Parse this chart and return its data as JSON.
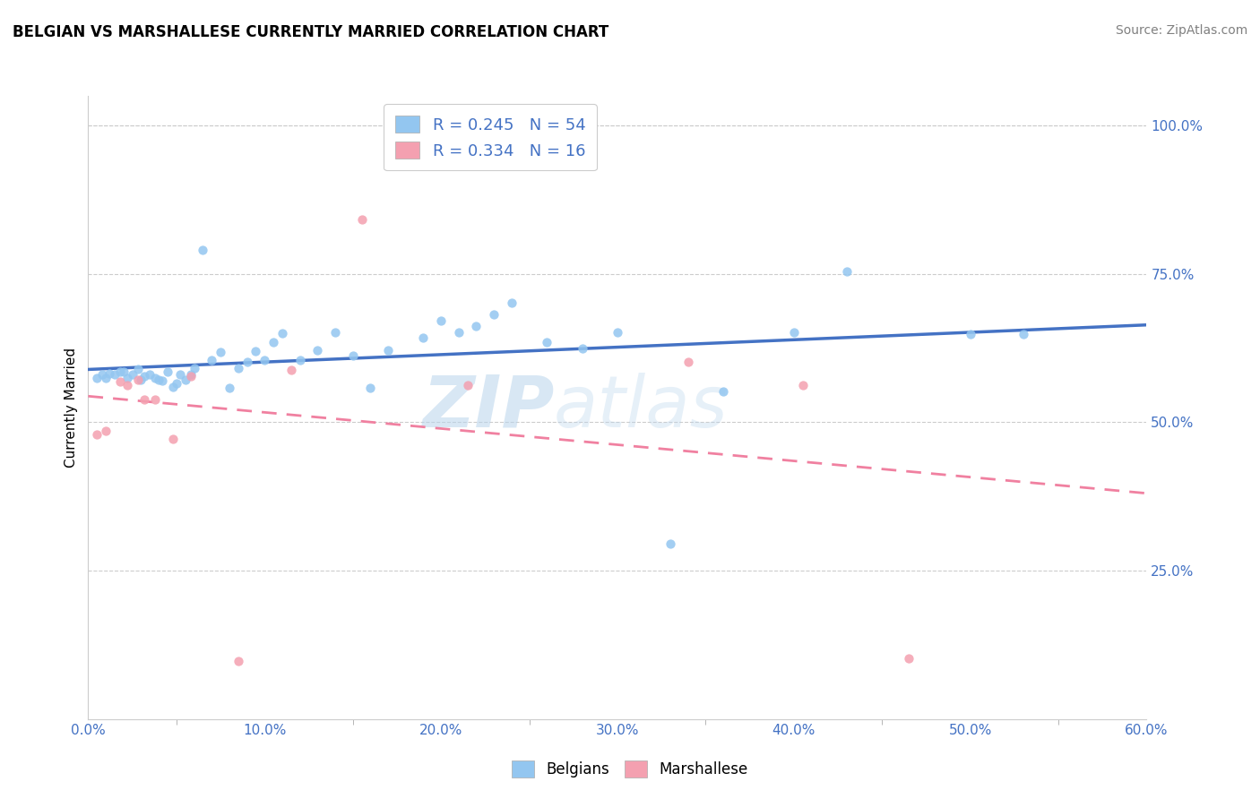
{
  "title": "BELGIAN VS MARSHALLESE CURRENTLY MARRIED CORRELATION CHART",
  "source_text": "Source: ZipAtlas.com",
  "ylabel_text": "Currently Married",
  "xlim": [
    0.0,
    0.6
  ],
  "ylim": [
    0.0,
    1.05
  ],
  "xtick_labels": [
    "0.0%",
    "",
    "10.0%",
    "",
    "20.0%",
    "",
    "30.0%",
    "",
    "40.0%",
    "",
    "50.0%",
    "",
    "60.0%"
  ],
  "xtick_vals": [
    0.0,
    0.05,
    0.1,
    0.15,
    0.2,
    0.25,
    0.3,
    0.35,
    0.4,
    0.45,
    0.5,
    0.55,
    0.6
  ],
  "ytick_labels": [
    "25.0%",
    "50.0%",
    "75.0%",
    "100.0%"
  ],
  "ytick_vals": [
    0.25,
    0.5,
    0.75,
    1.0
  ],
  "belgian_color": "#93c6f0",
  "marshallese_color": "#f4a0b0",
  "belgian_line_color": "#4472c4",
  "marshallese_line_color": "#f080a0",
  "legend_text_color": "#4472c4",
  "watermark_zip": "ZIP",
  "watermark_atlas": "atlas",
  "R_belgian": 0.245,
  "N_belgian": 54,
  "R_marshallese": 0.334,
  "N_marshallese": 16,
  "belgians_scatter_x": [
    0.005,
    0.008,
    0.01,
    0.012,
    0.015,
    0.018,
    0.02,
    0.022,
    0.025,
    0.028,
    0.03,
    0.032,
    0.035,
    0.038,
    0.04,
    0.042,
    0.045,
    0.048,
    0.05,
    0.052,
    0.055,
    0.058,
    0.06,
    0.065,
    0.07,
    0.075,
    0.08,
    0.085,
    0.09,
    0.095,
    0.1,
    0.105,
    0.11,
    0.12,
    0.13,
    0.14,
    0.15,
    0.16,
    0.17,
    0.19,
    0.2,
    0.21,
    0.22,
    0.23,
    0.24,
    0.26,
    0.28,
    0.3,
    0.33,
    0.36,
    0.4,
    0.43,
    0.5,
    0.53
  ],
  "belgians_scatter_y": [
    0.575,
    0.58,
    0.575,
    0.582,
    0.58,
    0.585,
    0.585,
    0.575,
    0.58,
    0.59,
    0.572,
    0.578,
    0.58,
    0.575,
    0.572,
    0.57,
    0.585,
    0.56,
    0.565,
    0.58,
    0.572,
    0.58,
    0.592,
    0.79,
    0.605,
    0.618,
    0.558,
    0.592,
    0.602,
    0.62,
    0.605,
    0.635,
    0.65,
    0.605,
    0.622,
    0.652,
    0.612,
    0.558,
    0.622,
    0.642,
    0.672,
    0.652,
    0.662,
    0.682,
    0.702,
    0.635,
    0.625,
    0.652,
    0.295,
    0.552,
    0.652,
    0.755,
    0.648,
    0.648
  ],
  "marshallese_scatter_x": [
    0.005,
    0.01,
    0.018,
    0.022,
    0.028,
    0.032,
    0.038,
    0.048,
    0.058,
    0.085,
    0.115,
    0.155,
    0.215,
    0.34,
    0.405,
    0.465
  ],
  "marshallese_scatter_y": [
    0.48,
    0.485,
    0.568,
    0.562,
    0.572,
    0.538,
    0.538,
    0.472,
    0.578,
    0.098,
    0.588,
    0.842,
    0.562,
    0.602,
    0.562,
    0.102
  ]
}
